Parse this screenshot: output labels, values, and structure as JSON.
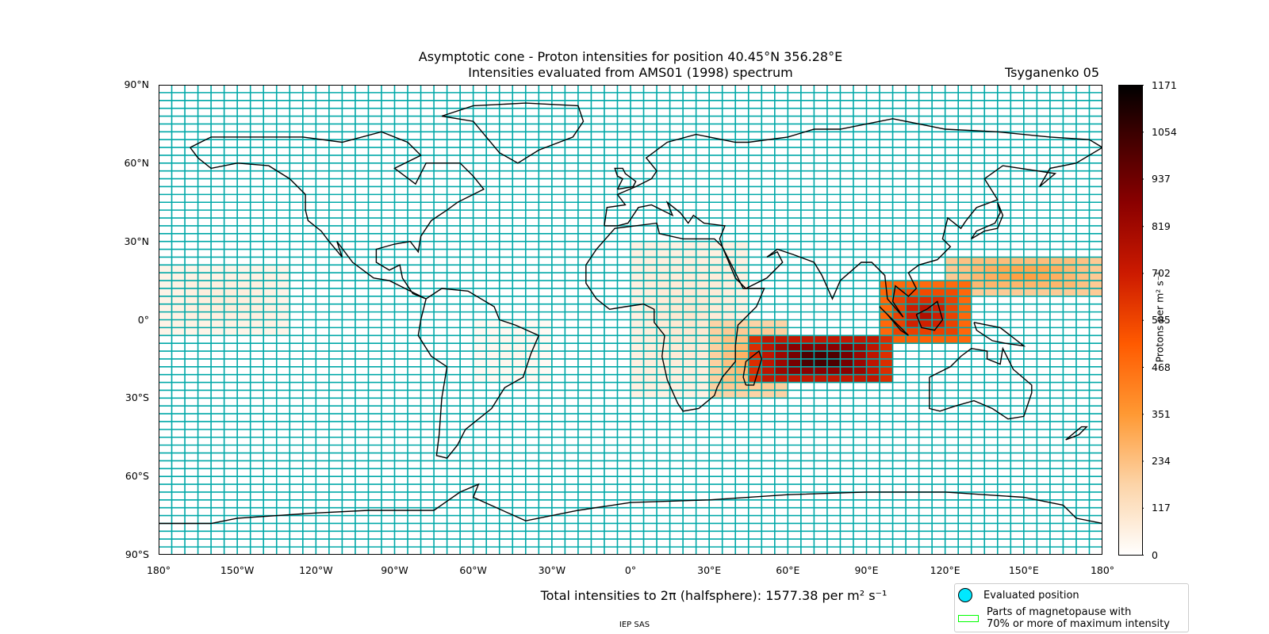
{
  "title_line1": "Asymptotic cone - Proton intensities for position 40.45°N 356.28°E",
  "title_line2": "Intensities evaluated from AMS01 (1998) spectrum",
  "model": "Tsyganenko 05",
  "lat_ticks": [
    "90°N",
    "60°N",
    "30°N",
    "0°",
    "30°S",
    "60°S",
    "90°S"
  ],
  "lon_ticks": [
    "180°",
    "150°W",
    "120°W",
    "90°W",
    "60°W",
    "30°W",
    "0°",
    "30°E",
    "60°E",
    "90°E",
    "120°E",
    "150°E",
    "180°"
  ],
  "colorbar": {
    "label": "Protons per m² s⁻¹",
    "ticks": [
      "1171",
      "1054",
      "937",
      "819",
      "702",
      "585",
      "468",
      "351",
      "234",
      "117",
      "0"
    ],
    "min": 0,
    "max": 1171,
    "colormap": "gist_heat_r"
  },
  "total_label": "Total intensities to 2π (halfsphere): 1577.38 per m² s⁻¹",
  "footer": "IEP SAS",
  "legend": {
    "evaluated_position": "Evaluated position",
    "magnetopause_line1": "Parts of magnetopause with",
    "magnetopause_line2": "70% or more of maximum intensity"
  },
  "colors": {
    "grid_cell_outline": "#00a8a8",
    "coastline": "#000000",
    "evaluated_marker": "#00e8ff",
    "magnetopause_marker": "#00ff00"
  },
  "chart_data": {
    "type": "heatmap",
    "projection": "plate-carree",
    "xlim": [
      -180,
      180
    ],
    "ylim": [
      -90,
      90
    ],
    "cell_deg_lon": 5,
    "cell_deg_lat": 3,
    "intensity_regions": [
      {
        "lon": [
          -180,
          -130
        ],
        "lat": [
          -5,
          20
        ],
        "value": 80
      },
      {
        "lon": [
          -60,
          -30
        ],
        "lat": [
          -25,
          0
        ],
        "value": 40
      },
      {
        "lon": [
          0,
          45
        ],
        "lat": [
          -30,
          30
        ],
        "value": 100
      },
      {
        "lon": [
          30,
          60
        ],
        "lat": [
          -30,
          0
        ],
        "value": 300
      },
      {
        "lon": [
          45,
          100
        ],
        "lat": [
          -25,
          -5
        ],
        "value": 1100
      },
      {
        "lon": [
          95,
          130
        ],
        "lat": [
          -10,
          15
        ],
        "value": 800
      },
      {
        "lon": [
          120,
          180
        ],
        "lat": [
          10,
          25
        ],
        "value": 350
      }
    ]
  }
}
